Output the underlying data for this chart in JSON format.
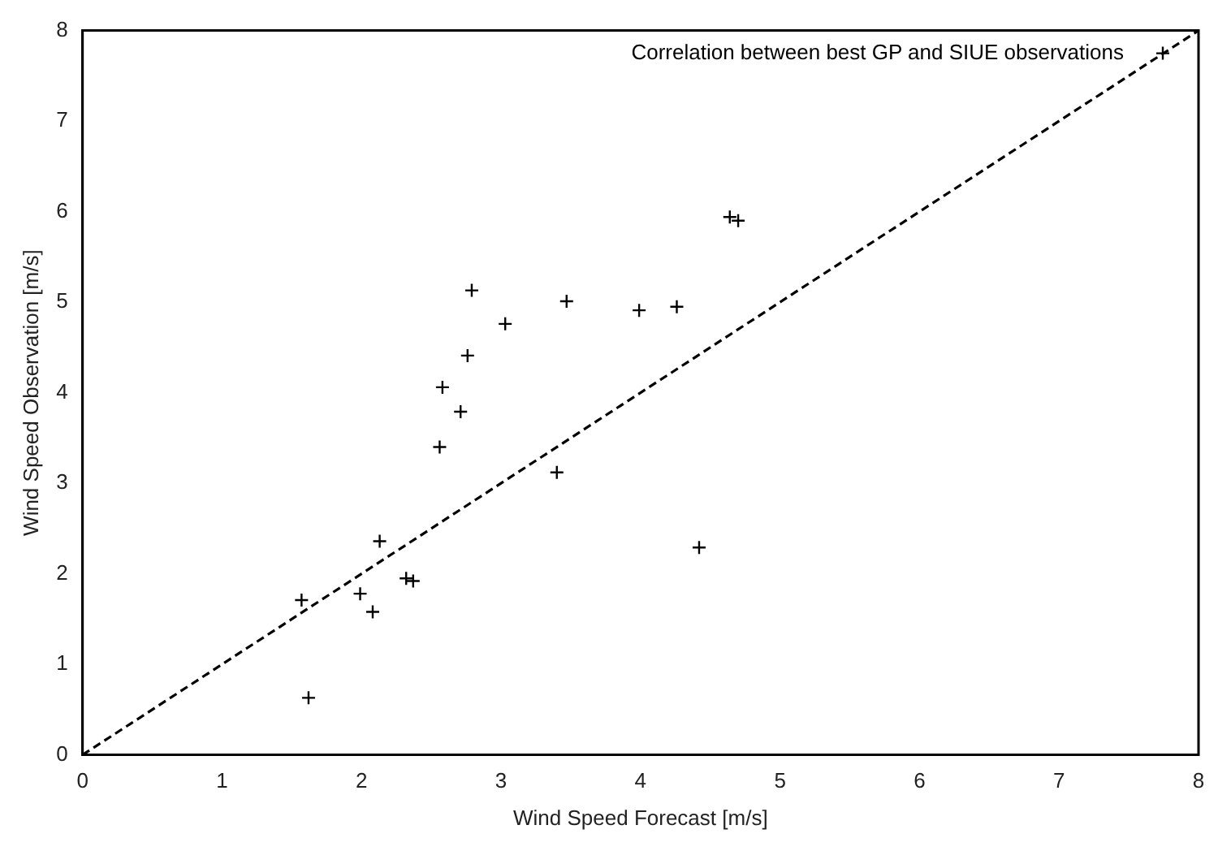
{
  "chart_data": {
    "type": "scatter",
    "xlabel": "Wind Speed Forecast [m/s]",
    "ylabel": "Wind Speed Observation [m/s]",
    "xlim": [
      0,
      8
    ],
    "ylim": [
      0,
      8
    ],
    "xticks": [
      0,
      1,
      2,
      3,
      4,
      5,
      6,
      7,
      8
    ],
    "yticks": [
      0,
      1,
      2,
      3,
      4,
      5,
      6,
      7,
      8
    ],
    "grid": false,
    "legend": "top right",
    "series": [
      {
        "name": "Correlation between best GP and SIUE observations",
        "type": "scatter",
        "marker": "cross",
        "color": "#000000",
        "x": [
          1.57,
          1.62,
          1.99,
          2.08,
          2.13,
          2.32,
          2.37,
          2.56,
          2.58,
          2.71,
          2.76,
          2.79,
          3.03,
          3.47,
          3.4,
          3.99,
          4.26,
          4.64,
          4.7,
          4.42
        ],
        "values": [
          1.71,
          0.63,
          1.78,
          1.58,
          2.36,
          1.95,
          1.92,
          3.4,
          4.06,
          3.79,
          4.41,
          5.13,
          4.76,
          5.01,
          3.12,
          4.91,
          4.95,
          5.94,
          5.9,
          2.29
        ]
      },
      {
        "type": "line",
        "marker": "none",
        "line_style": "dashed",
        "color": "#000000",
        "x": [
          0,
          8
        ],
        "values": [
          0,
          8
        ]
      }
    ]
  }
}
